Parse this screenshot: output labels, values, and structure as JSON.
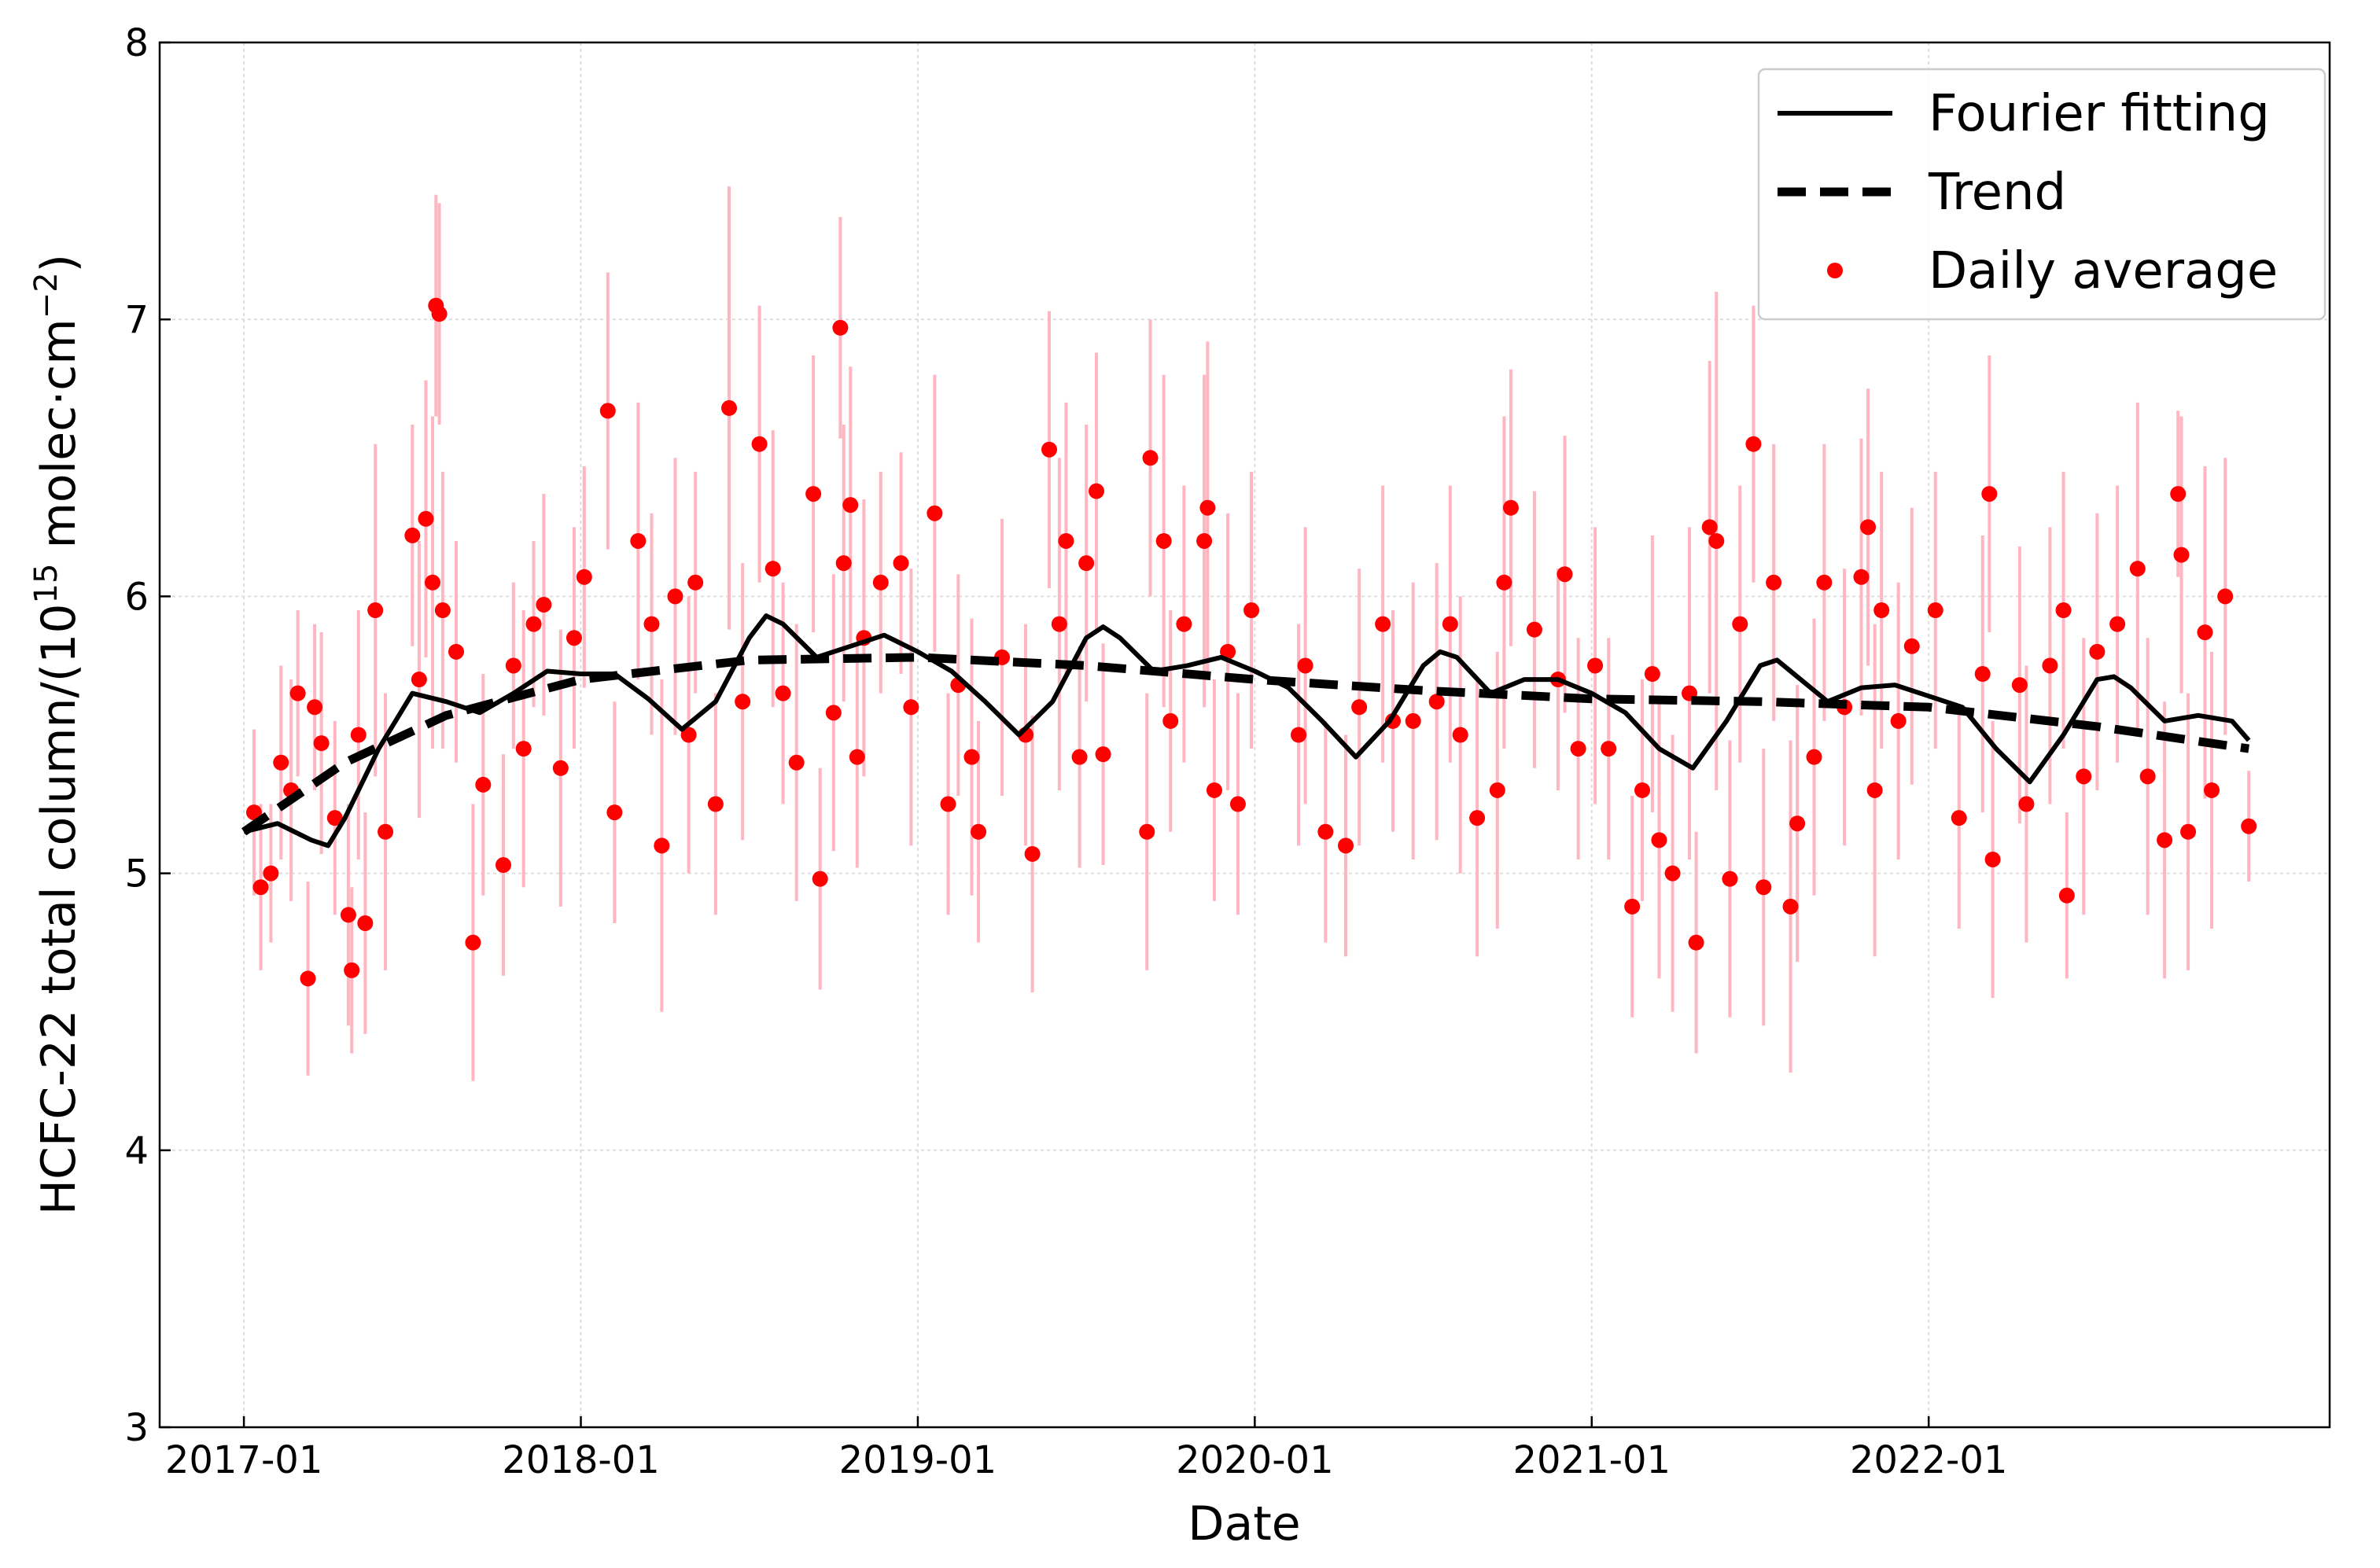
{
  "chart_data": {
    "type": "scatter",
    "xlabel": "Date",
    "ylabel": {
      "parts": [
        {
          "text": "HCFC-22 total column/(10"
        },
        {
          "text": "15",
          "sup": true
        },
        {
          "text": " molec·cm"
        },
        {
          "text": "−2",
          "sup": true
        },
        {
          "text": ")"
        }
      ]
    },
    "xlim": [
      2016.75,
      2023.19
    ],
    "ylim": [
      3,
      8
    ],
    "xticks": [
      {
        "value": 2017,
        "label": "2017-01"
      },
      {
        "value": 2018,
        "label": "2018-01"
      },
      {
        "value": 2019,
        "label": "2019-01"
      },
      {
        "value": 2020,
        "label": "2020-01"
      },
      {
        "value": 2021,
        "label": "2021-01"
      },
      {
        "value": 2022,
        "label": "2022-01"
      }
    ],
    "yticks": [
      3,
      4,
      5,
      6,
      7,
      8
    ],
    "grid": true,
    "legend": "upper right",
    "series": [
      {
        "name": "Fourier fitting",
        "style": "line",
        "color": "#000000",
        "x": [
          2017.0,
          2017.1,
          2017.2,
          2017.25,
          2017.3,
          2017.4,
          2017.5,
          2017.6,
          2017.7,
          2017.8,
          2017.9,
          2018.0,
          2018.1,
          2018.2,
          2018.3,
          2018.4,
          2018.5,
          2018.55,
          2018.6,
          2018.7,
          2018.8,
          2018.9,
          2019.0,
          2019.1,
          2019.2,
          2019.3,
          2019.4,
          2019.5,
          2019.55,
          2019.6,
          2019.7,
          2019.8,
          2019.9,
          2020.0,
          2020.1,
          2020.2,
          2020.3,
          2020.4,
          2020.5,
          2020.55,
          2020.6,
          2020.7,
          2020.8,
          2020.9,
          2021.0,
          2021.1,
          2021.2,
          2021.3,
          2021.4,
          2021.5,
          2021.55,
          2021.6,
          2021.7,
          2021.8,
          2021.9,
          2022.0,
          2022.1,
          2022.2,
          2022.3,
          2022.4,
          2022.5,
          2022.55,
          2022.6,
          2022.7,
          2022.8,
          2022.9,
          2022.95
        ],
        "values": [
          5.15,
          5.18,
          5.12,
          5.1,
          5.2,
          5.45,
          5.65,
          5.62,
          5.58,
          5.65,
          5.73,
          5.72,
          5.72,
          5.63,
          5.52,
          5.62,
          5.85,
          5.93,
          5.9,
          5.78,
          5.82,
          5.86,
          5.8,
          5.73,
          5.62,
          5.5,
          5.62,
          5.85,
          5.89,
          5.85,
          5.73,
          5.75,
          5.78,
          5.73,
          5.67,
          5.55,
          5.42,
          5.55,
          5.75,
          5.8,
          5.78,
          5.65,
          5.7,
          5.7,
          5.65,
          5.58,
          5.45,
          5.38,
          5.55,
          5.75,
          5.77,
          5.72,
          5.62,
          5.67,
          5.68,
          5.64,
          5.6,
          5.45,
          5.33,
          5.5,
          5.7,
          5.71,
          5.67,
          5.55,
          5.57,
          5.55,
          5.48
        ]
      },
      {
        "name": "Trend",
        "style": "dashed",
        "color": "#000000",
        "x": [
          2017.0,
          2017.3,
          2017.6,
          2018.0,
          2018.5,
          2019.0,
          2019.5,
          2020.0,
          2020.5,
          2021.0,
          2021.5,
          2022.0,
          2022.5,
          2022.95
        ],
        "values": [
          5.15,
          5.4,
          5.57,
          5.7,
          5.77,
          5.78,
          5.75,
          5.7,
          5.66,
          5.63,
          5.62,
          5.6,
          5.53,
          5.45
        ]
      },
      {
        "name": "Daily average",
        "style": "points",
        "color": "#ff0000",
        "error_color": "#ffb6c1",
        "x": [
          2017.03,
          2017.05,
          2017.08,
          2017.11,
          2017.14,
          2017.16,
          2017.19,
          2017.21,
          2017.23,
          2017.27,
          2017.31,
          2017.32,
          2017.34,
          2017.36,
          2017.39,
          2017.42,
          2017.5,
          2017.52,
          2017.54,
          2017.56,
          2017.57,
          2017.58,
          2017.59,
          2017.63,
          2017.68,
          2017.71,
          2017.77,
          2017.8,
          2017.83,
          2017.86,
          2017.89,
          2017.94,
          2017.98,
          2018.01,
          2018.08,
          2018.1,
          2018.17,
          2018.21,
          2018.24,
          2018.28,
          2018.32,
          2018.34,
          2018.4,
          2018.44,
          2018.48,
          2018.53,
          2018.57,
          2018.6,
          2018.64,
          2018.69,
          2018.71,
          2018.75,
          2018.77,
          2018.78,
          2018.8,
          2018.82,
          2018.84,
          2018.89,
          2018.95,
          2018.98,
          2019.05,
          2019.09,
          2019.12,
          2019.16,
          2019.18,
          2019.25,
          2019.32,
          2019.34,
          2019.39,
          2019.42,
          2019.44,
          2019.48,
          2019.5,
          2019.53,
          2019.55,
          2019.68,
          2019.69,
          2019.73,
          2019.75,
          2019.79,
          2019.85,
          2019.86,
          2019.88,
          2019.92,
          2019.95,
          2019.99,
          2020.13,
          2020.15,
          2020.21,
          2020.27,
          2020.31,
          2020.38,
          2020.41,
          2020.47,
          2020.54,
          2020.58,
          2020.61,
          2020.66,
          2020.72,
          2020.74,
          2020.76,
          2020.83,
          2020.9,
          2020.92,
          2020.96,
          2021.01,
          2021.05,
          2021.12,
          2021.15,
          2021.18,
          2021.2,
          2021.24,
          2021.29,
          2021.31,
          2021.35,
          2021.37,
          2021.41,
          2021.44,
          2021.48,
          2021.51,
          2021.54,
          2021.59,
          2021.61,
          2021.66,
          2021.69,
          2021.75,
          2021.8,
          2021.82,
          2021.84,
          2021.86,
          2021.91,
          2021.95,
          2022.02,
          2022.09,
          2022.16,
          2022.18,
          2022.19,
          2022.27,
          2022.29,
          2022.36,
          2022.4,
          2022.41,
          2022.46,
          2022.5,
          2022.56,
          2022.62,
          2022.65,
          2022.7,
          2022.74,
          2022.75,
          2022.77,
          2022.82,
          2022.84,
          2022.88,
          2022.95
        ],
        "values": [
          5.22,
          4.95,
          5.0,
          5.4,
          5.3,
          5.65,
          4.62,
          5.6,
          5.47,
          5.2,
          4.85,
          4.65,
          5.5,
          4.82,
          5.95,
          5.15,
          6.22,
          5.7,
          6.28,
          6.05,
          7.05,
          7.02,
          5.95,
          5.8,
          4.75,
          5.32,
          5.03,
          5.75,
          5.45,
          5.9,
          5.97,
          5.38,
          5.85,
          6.07,
          6.67,
          5.22,
          6.2,
          5.9,
          5.1,
          6.0,
          5.5,
          6.05,
          5.25,
          6.68,
          5.62,
          6.55,
          6.1,
          5.65,
          5.4,
          6.37,
          4.98,
          5.58,
          6.97,
          6.12,
          6.33,
          5.42,
          5.85,
          6.05,
          6.12,
          5.6,
          6.3,
          5.25,
          5.68,
          5.42,
          5.15,
          5.78,
          5.5,
          5.07,
          6.53,
          5.9,
          6.2,
          5.42,
          6.12,
          6.38,
          5.43,
          5.15,
          6.5,
          6.2,
          5.55,
          5.9,
          6.2,
          6.32,
          5.3,
          5.8,
          5.25,
          5.95,
          5.5,
          5.75,
          5.15,
          5.1,
          5.6,
          5.9,
          5.55,
          5.55,
          5.62,
          5.9,
          5.5,
          5.2,
          5.3,
          6.05,
          6.32,
          5.88,
          5.7,
          6.08,
          5.45,
          5.75,
          5.45,
          4.88,
          5.3,
          5.72,
          5.12,
          5.0,
          5.65,
          4.75,
          6.25,
          6.2,
          4.98,
          5.9,
          6.55,
          4.95,
          6.05,
          4.88,
          5.18,
          5.42,
          6.05,
          5.6,
          6.07,
          6.25,
          5.3,
          5.95,
          5.55,
          5.82,
          5.95,
          5.2,
          5.72,
          6.37,
          5.05,
          5.68,
          5.25,
          5.75,
          5.95,
          4.92,
          5.35,
          5.8,
          5.9,
          6.1,
          5.35,
          5.12,
          6.37,
          6.15,
          5.15,
          5.87,
          5.3,
          6.0,
          5.17
        ],
        "errors": [
          0.3,
          0.3,
          0.25,
          0.35,
          0.4,
          0.3,
          0.35,
          0.3,
          0.4,
          0.35,
          0.4,
          0.3,
          0.45,
          0.4,
          0.6,
          0.5,
          0.4,
          0.5,
          0.5,
          0.6,
          0.4,
          0.4,
          0.5,
          0.4,
          0.5,
          0.4,
          0.4,
          0.3,
          0.5,
          0.3,
          0.4,
          0.5,
          0.4,
          0.4,
          0.5,
          0.4,
          0.5,
          0.4,
          0.6,
          0.5,
          0.5,
          0.4,
          0.4,
          0.8,
          0.5,
          0.5,
          0.5,
          0.4,
          0.5,
          0.5,
          0.4,
          0.5,
          0.4,
          0.5,
          0.5,
          0.4,
          0.5,
          0.4,
          0.4,
          0.5,
          0.5,
          0.4,
          0.4,
          0.5,
          0.4,
          0.5,
          0.4,
          0.5,
          0.5,
          0.6,
          0.5,
          0.4,
          0.5,
          0.5,
          0.4,
          0.5,
          0.5,
          0.6,
          0.4,
          0.5,
          0.6,
          0.6,
          0.4,
          0.5,
          0.4,
          0.5,
          0.4,
          0.5,
          0.4,
          0.4,
          0.5,
          0.5,
          0.4,
          0.5,
          0.5,
          0.5,
          0.5,
          0.5,
          0.5,
          0.6,
          0.5,
          0.5,
          0.4,
          0.5,
          0.4,
          0.5,
          0.4,
          0.4,
          0.4,
          0.5,
          0.5,
          0.5,
          0.6,
          0.4,
          0.6,
          0.9,
          0.5,
          0.5,
          0.5,
          0.5,
          0.5,
          0.6,
          0.5,
          0.5,
          0.5,
          0.5,
          0.5,
          0.5,
          0.6,
          0.5,
          0.5,
          0.5,
          0.5,
          0.4,
          0.5,
          0.5,
          0.5,
          0.5,
          0.5,
          0.5,
          0.5,
          0.3,
          0.5,
          0.5,
          0.5,
          0.6,
          0.5,
          0.5,
          0.3,
          0.5,
          0.5,
          0.6,
          0.5,
          0.5,
          0.2
        ]
      }
    ]
  }
}
